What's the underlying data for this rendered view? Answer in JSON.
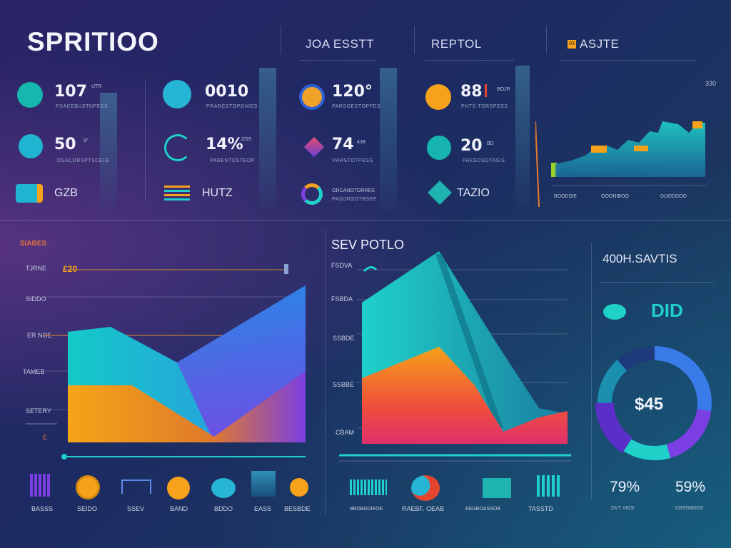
{
  "brand": "SPRITIOO",
  "top_headers": [
    "JOA ESSTT",
    "REPTOL",
    "ASJTE"
  ],
  "top_header_prefix_badge": "03",
  "stats": [
    {
      "value": "107",
      "suffix": "UTR",
      "sub": "PSACEBUSTNPESS"
    },
    {
      "value": "0010",
      "sub": "PRARCSTOPOAIES"
    },
    {
      "value": "120°",
      "sub": "PARSOESTOPPES"
    },
    {
      "value": "88",
      "suffix": "BOJR",
      "sub": "PNTS-TORSPESS"
    },
    {
      "value": "50",
      "suffix": "9°",
      "sub": "DSACORSPTSCELE"
    },
    {
      "value": "14%",
      "suffix": "ZOS",
      "sub": "PARENTOSTEOP"
    },
    {
      "value": "74",
      "suffix": "4JB",
      "sub": "PARSTOTPESS"
    },
    {
      "value": "20",
      "suffix": "BD",
      "sub": "PAESOSOTASIS"
    },
    {
      "value": "GZB"
    },
    {
      "value": "HUTZ"
    },
    {
      "value": "ORCANOTORRES",
      "sub": "PASORSOTBSEE"
    },
    {
      "value": "TAZIO"
    }
  ],
  "top_chart": {
    "corner": "330",
    "labels": [
      "BOODSIE",
      "GOONIBOO",
      "DIJODDOO"
    ]
  },
  "left_chart": {
    "title": "SIABES",
    "callout": "£20",
    "y_labels": [
      "TJRNE",
      "SIDDO",
      "ER NOE",
      "TAMEB",
      "SETERY"
    ],
    "mark": "E"
  },
  "mid_chart": {
    "title": "SEV POTLO",
    "y_labels": [
      "FSDVA",
      "FSBDA",
      "SSBDE",
      "SSBBE",
      "CBAM"
    ]
  },
  "right_panel": {
    "title": "400H.SAVTIS",
    "badge": "DID",
    "donut_value": "$45",
    "pct_left": "79%",
    "pct_right": "59%",
    "pct_left_sub": "DVT VIOS",
    "pct_right_sub": "CRSSBDOS"
  },
  "bottom_items": [
    "BASSS",
    "SEIDO",
    "SSEV",
    "BAND",
    "BDDO",
    "EASS",
    "BESBDE"
  ],
  "bottom_mid_items": [
    "BBOBDDIEOE",
    "RAEBF. OEAB",
    "EEGBOASSOB",
    "TASSTD"
  ],
  "colors": {
    "teal": "#1fd1c9",
    "orange": "#f6a21a",
    "purple": "#7b3fe4",
    "blue": "#3a7bea"
  }
}
